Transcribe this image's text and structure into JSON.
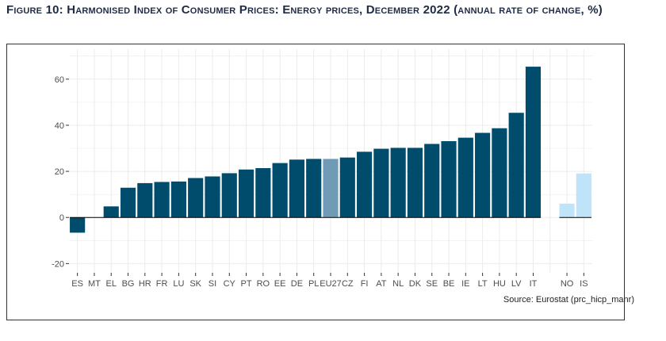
{
  "figure": {
    "title": "Figure 10: Harmonised Index of Consumer Prices: Energy prices, December 2022 (annual rate of change, %)",
    "source": "Source: Eurostat (prc_hicp_manr)"
  },
  "colors": {
    "member": "#004c6d",
    "eu": "#6f9bb7",
    "other": "#bfe4fa",
    "grid": "#ebebeb",
    "axis_text": "#4d4d4d"
  },
  "chart_data": {
    "type": "bar",
    "title": "",
    "xlabel": "",
    "ylabel": "",
    "ylim": [
      -24,
      73
    ],
    "yticks": [
      -20,
      0,
      20,
      40,
      60
    ],
    "grid": true,
    "categories": [
      "ES",
      "MT",
      "EL",
      "BG",
      "HR",
      "FR",
      "LU",
      "SK",
      "SI",
      "CY",
      "PT",
      "RO",
      "EE",
      "DE",
      "PL",
      "EU27",
      "CZ",
      "FI",
      "AT",
      "NL",
      "DK",
      "SE",
      "BE",
      "IE",
      "LT",
      "HU",
      "LV",
      "IT",
      "NO",
      "IS"
    ],
    "values": [
      -6.6,
      0,
      4.8,
      12.9,
      14.9,
      15.4,
      15.6,
      17.1,
      17.8,
      19.2,
      20.8,
      21.4,
      23.6,
      25.1,
      25.4,
      25.4,
      26.0,
      28.5,
      29.8,
      30.2,
      30.2,
      31.9,
      33.1,
      34.6,
      36.7,
      38.7,
      45.4,
      65.4,
      6.0,
      19.1
    ],
    "groups": [
      "member",
      "member",
      "member",
      "member",
      "member",
      "member",
      "member",
      "member",
      "member",
      "member",
      "member",
      "member",
      "member",
      "member",
      "member",
      "eu",
      "member",
      "member",
      "member",
      "member",
      "member",
      "member",
      "member",
      "member",
      "member",
      "member",
      "member",
      "member",
      "other",
      "other"
    ]
  }
}
